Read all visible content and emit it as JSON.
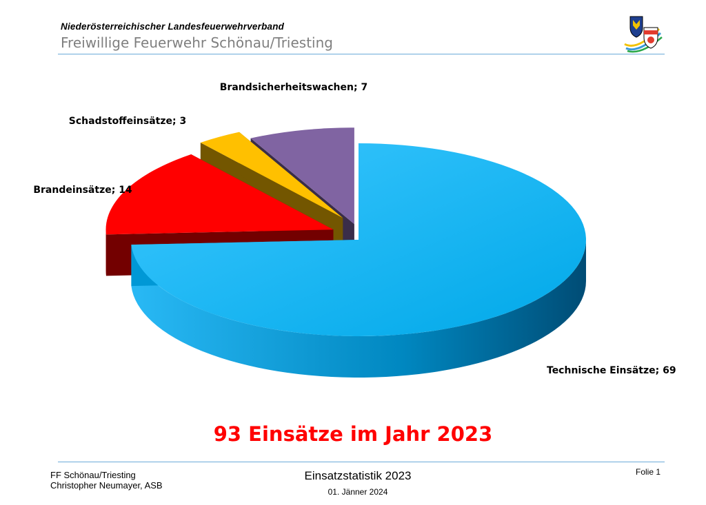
{
  "header": {
    "organization": "Niederösterreichischer  Landesfeuerwehrverband",
    "unit": "Freiwillige Feuerwehr Schönau/Triesting"
  },
  "chart_data": {
    "type": "pie",
    "title": "",
    "slices": [
      {
        "label": "Technische Einsätze",
        "value": 69,
        "color": "#00b0f0",
        "text": "Technische Einsätze; 69"
      },
      {
        "label": "Brandeinsätze",
        "value": 14,
        "color": "#ff0000",
        "text": "Brandeinsätze; 14"
      },
      {
        "label": "Schadstoffeinsätze",
        "value": 3,
        "color": "#ffc000",
        "text": "Schadstoffeinsätze; 3"
      },
      {
        "label": "Brandsicherheitswachen",
        "value": 7,
        "color": "#8064a2",
        "text": "Brandsicherheitswachen; 7"
      }
    ],
    "style": "3d-exploded",
    "legend": "none"
  },
  "summary": "93 Einsätze im Jahr 2023",
  "footer": {
    "left_line1": "FF Schönau/Triesting",
    "left_line2": "Christopher Neumayer, ASB",
    "center_title": "Einsatzstatistik 2023",
    "center_date": "01. Jänner 2024",
    "slide": "Folie 1"
  }
}
